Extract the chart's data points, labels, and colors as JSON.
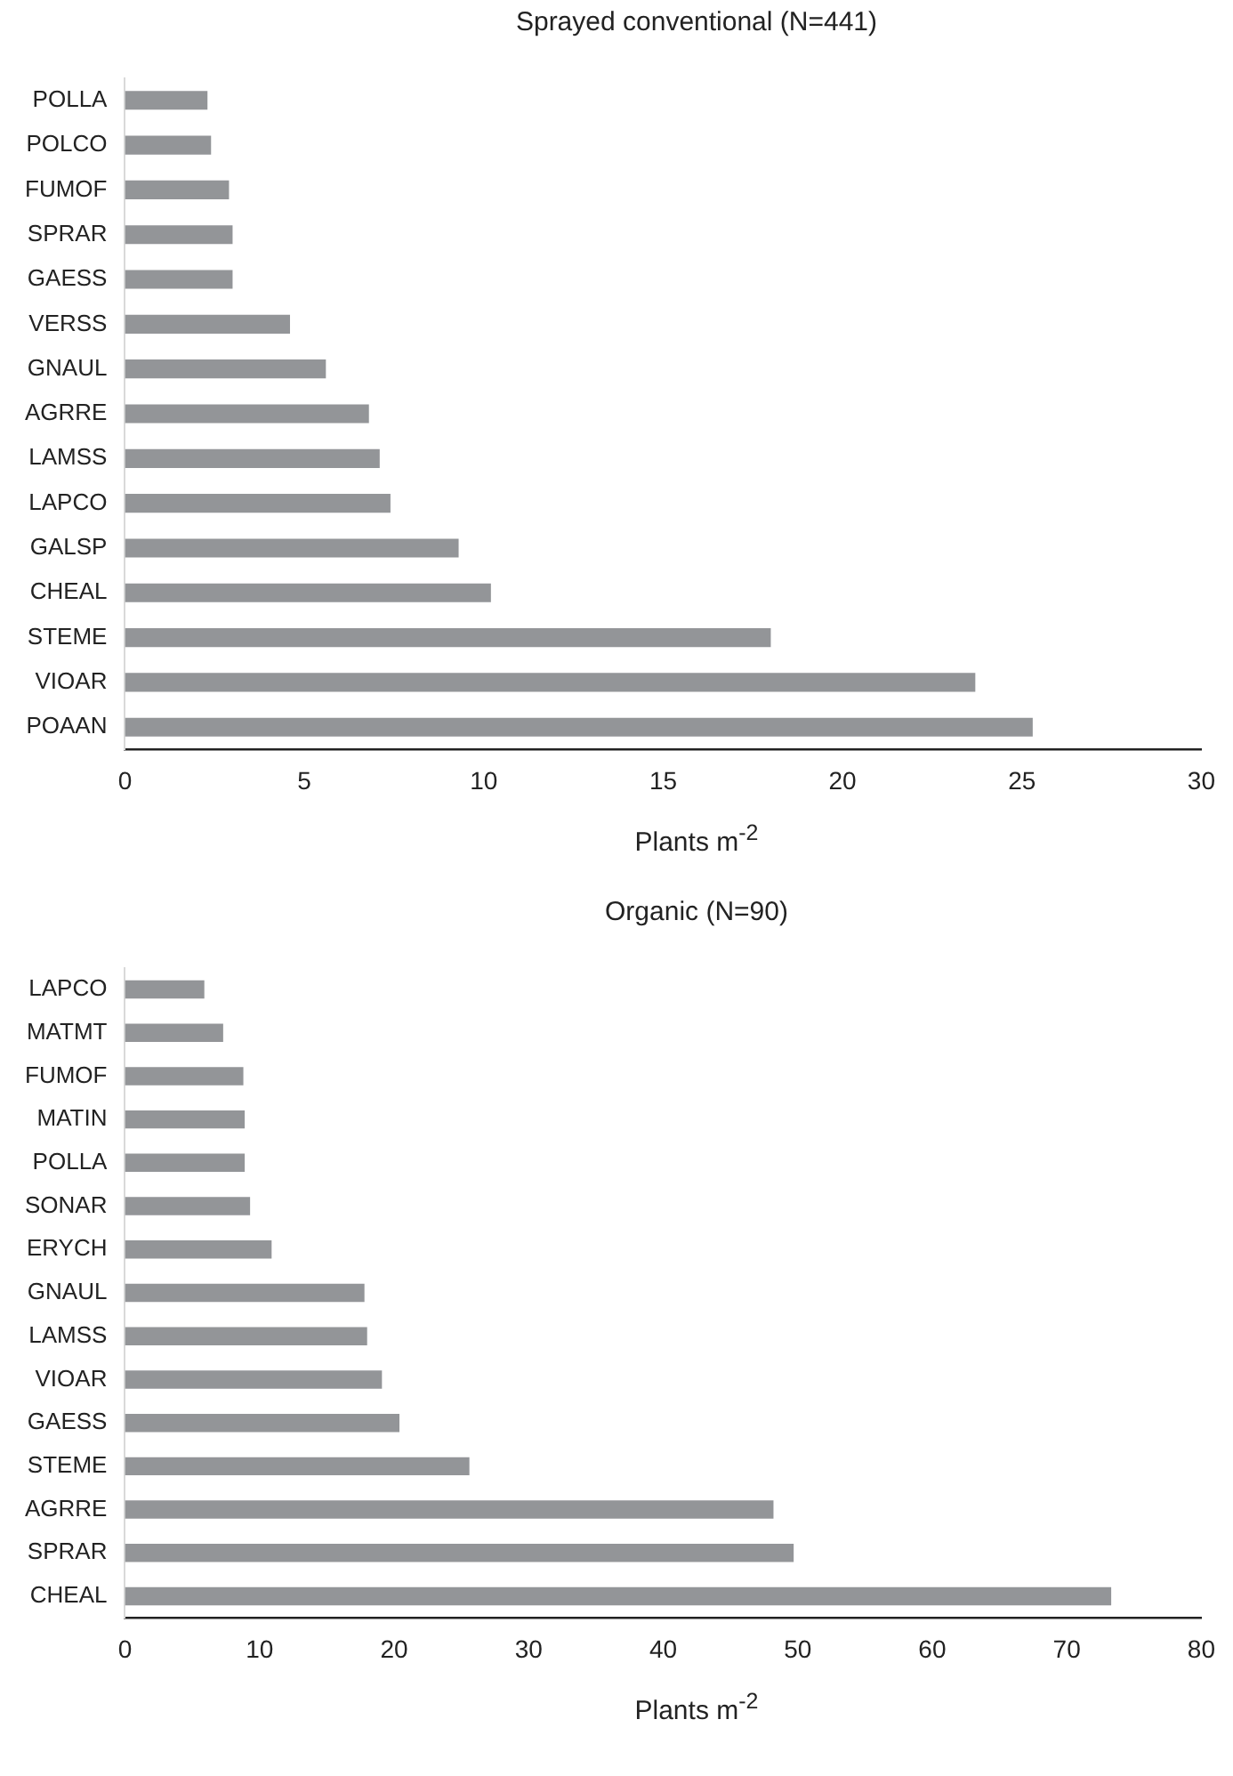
{
  "chart_data": [
    {
      "type": "bar",
      "orientation": "horizontal",
      "title": "Sprayed conventional (N=441)",
      "xlabel": "Plants m$^{-2}$",
      "categories": [
        "POLLA",
        "POLCO",
        "FUMOF",
        "SPRAR",
        "GAESS",
        "VERSS",
        "GNAUL",
        "AGRRE",
        "LAMSS",
        "LAPCO",
        "GALSP",
        "CHEAL",
        "STEME",
        "VIOAR",
        "POAAN"
      ],
      "values": [
        2.3,
        2.4,
        2.9,
        3.0,
        3.0,
        4.6,
        5.6,
        6.8,
        7.1,
        7.4,
        9.3,
        10.2,
        18.0,
        23.7,
        25.3
      ],
      "color": "#939598",
      "xlim": [
        0,
        30
      ],
      "xticks": [
        0,
        5,
        10,
        15,
        20,
        25,
        30
      ]
    },
    {
      "type": "bar",
      "orientation": "horizontal",
      "title": "Organic (N=90)",
      "xlabel": "Plants m$^{-2}$",
      "categories": [
        "LAPCO",
        "MATMT",
        "FUMOF",
        "MATIN",
        "POLLA",
        "SONAR",
        "ERYCH",
        "GNAUL",
        "LAMSS",
        "VIOAR",
        "GAESS",
        "STEME",
        "AGRRE",
        "SPRAR",
        "CHEAL"
      ],
      "values": [
        5.9,
        7.3,
        8.8,
        8.9,
        8.9,
        9.3,
        10.9,
        17.8,
        18.0,
        19.1,
        20.4,
        25.6,
        48.2,
        49.7,
        73.3
      ],
      "color": "#939598",
      "xlim": [
        0,
        80
      ],
      "xticks": [
        0,
        10,
        20,
        30,
        40,
        50,
        60,
        70,
        80
      ]
    }
  ]
}
